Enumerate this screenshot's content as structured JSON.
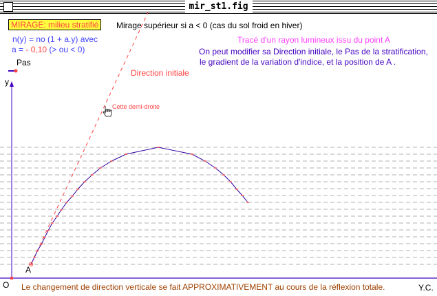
{
  "window": {
    "title": "mir_st1.fig"
  },
  "labels": {
    "heading": "MIRAGE: milieu stratifié",
    "formula": "n(y) = no (1 + a.y)  avec",
    "a_prefix": "a = ",
    "a_value": "- 0,10",
    "a_suffix": "  (> ou < 0)",
    "pas": "Pas",
    "y_axis": "y",
    "origin": "O",
    "point_a": "A",
    "mirage_note": "Mirage supérieur si a < 0  (cas du sol froid en hiver)",
    "trace_title": "Tracé d'un rayon lumineux issu du point  A",
    "modify_line1": "On peut modifier sa Direction initiale, le Pas de la stratification,",
    "modify_line2": "le gradient de la variation d'indice, et la position de A .",
    "direction": "Direction initiale",
    "demi_droite": "Cette demi-droite",
    "footer": "Le changement de direction verticale se fait APPROXIMATIVEMENT au cours de la réflexion totale.",
    "credit": "Y.C."
  },
  "colors": {
    "heading_bg": "#ffff40",
    "red": "#ff4040",
    "blue": "#4040ff",
    "purple": "#4000c0",
    "magenta": "#ff40ff",
    "brown": "#a04000",
    "ray": "#3000a0",
    "strata": "#b0b0b0"
  }
}
